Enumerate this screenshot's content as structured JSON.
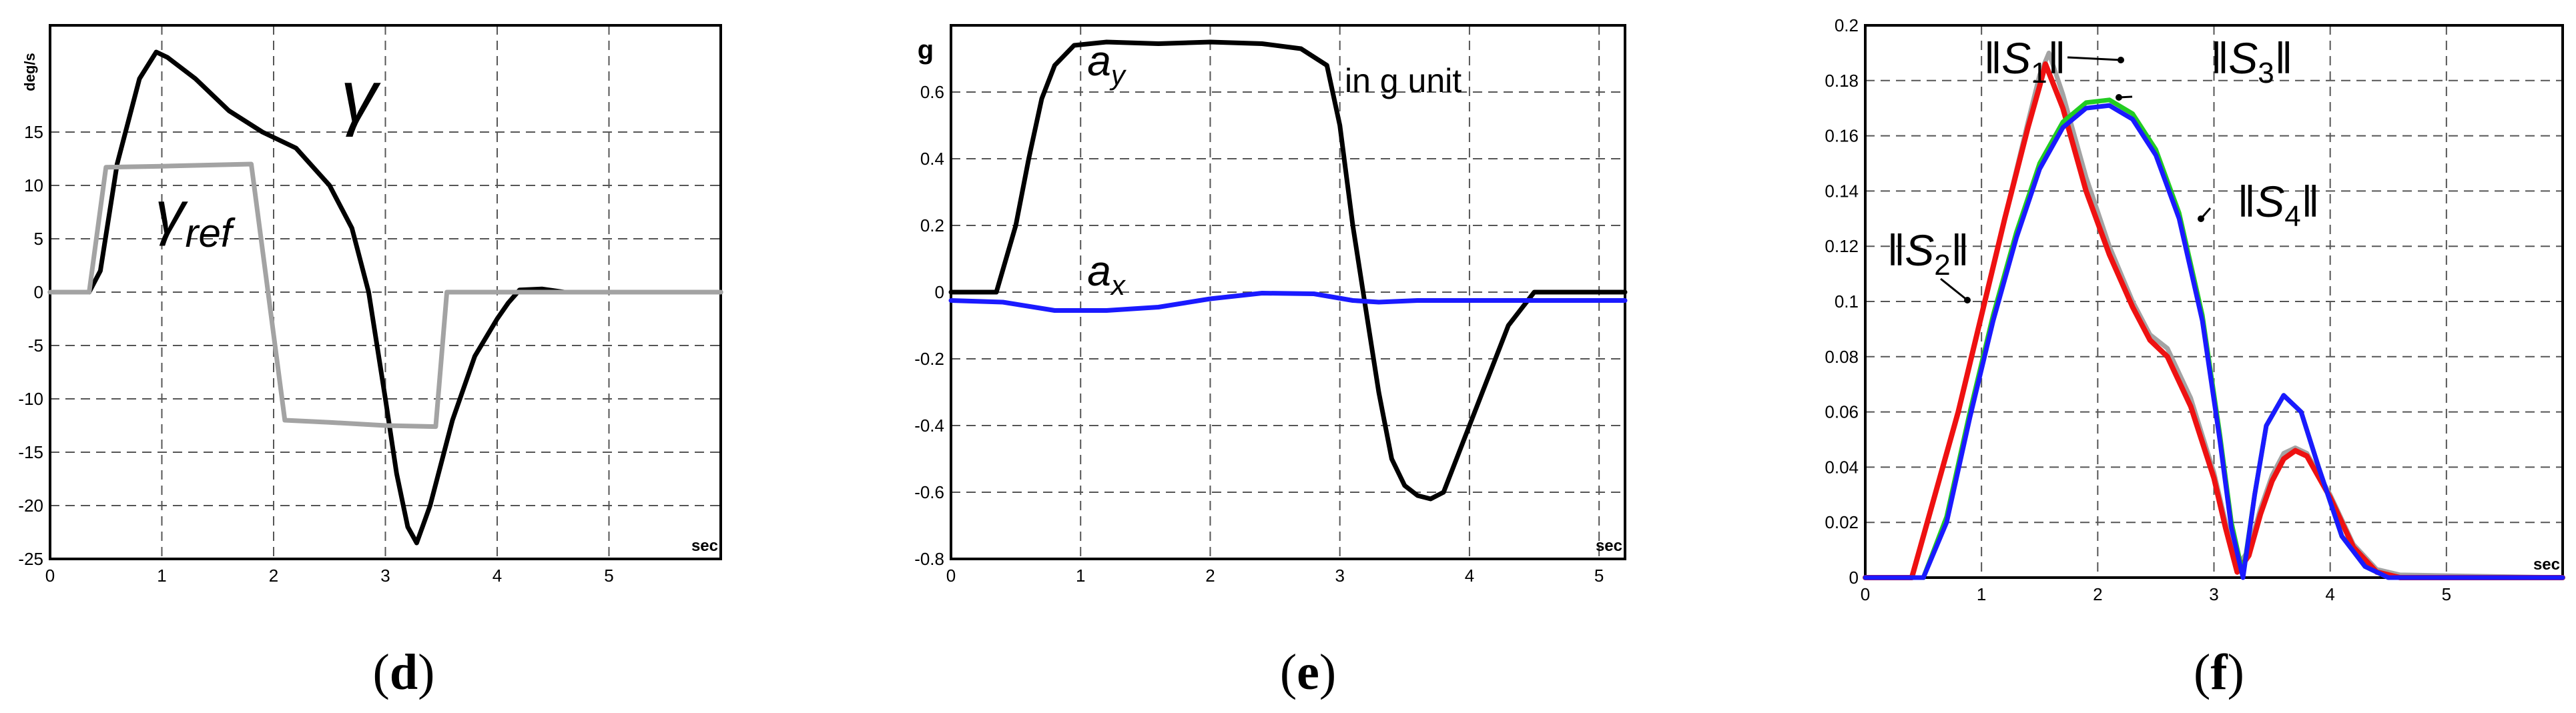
{
  "colors": {
    "black": "#000000",
    "gray": "#a3a3a3",
    "blue": "#1a1aff",
    "red": "#ee1111",
    "green": "#22cc22",
    "grid": "#555555"
  },
  "panels": [
    {
      "label_open": "(",
      "label_letter": "d",
      "label_close": ")"
    },
    {
      "label_open": "(",
      "label_letter": "e",
      "label_close": ")"
    },
    {
      "label_open": "(",
      "label_letter": "f",
      "label_close": ")"
    }
  ],
  "chart_data": [
    {
      "type": "line",
      "ylabel": "deg/s",
      "xunit": "sec",
      "xlim": [
        0,
        6
      ],
      "ylim": [
        -25,
        25
      ],
      "xticks": [
        0,
        1,
        2,
        3,
        4,
        5
      ],
      "yticks": [
        -25,
        -20,
        -15,
        -10,
        -5,
        0,
        5,
        10,
        15
      ],
      "grid": true,
      "annotations": [
        {
          "text": "γ",
          "x": 2.6,
          "y": 16
        },
        {
          "text": "γ",
          "sub": "ref",
          "x": 1.0,
          "y": 5.5
        }
      ],
      "series": [
        {
          "name": "γ",
          "color": "black",
          "x": [
            0,
            0.35,
            0.45,
            0.6,
            0.8,
            0.95,
            1.05,
            1.3,
            1.6,
            1.9,
            2.2,
            2.5,
            2.7,
            2.85,
            3.0,
            3.1,
            3.2,
            3.28,
            3.4,
            3.6,
            3.8,
            4.0,
            4.1,
            4.2,
            4.4,
            4.6,
            6.0
          ],
          "y": [
            0,
            0,
            2,
            12,
            20,
            22.5,
            22,
            20,
            17,
            15,
            13.5,
            10,
            6,
            0,
            -10,
            -17,
            -22,
            -23.5,
            -20,
            -12,
            -6,
            -2.5,
            -1,
            0.2,
            0.3,
            0,
            0
          ]
        },
        {
          "name": "γref",
          "color": "gray",
          "x": [
            0,
            0.35,
            0.5,
            1.0,
            1.8,
            2.1,
            2.5,
            3.0,
            3.45,
            3.55,
            6.0
          ],
          "y": [
            0,
            0,
            11.7,
            11.8,
            12,
            -12,
            -12.2,
            -12.5,
            -12.6,
            0,
            0
          ]
        }
      ]
    },
    {
      "type": "line",
      "ylabel": "g",
      "xunit": "sec",
      "annotation_text": "in g unit",
      "xlim": [
        0,
        5.2
      ],
      "ylim": [
        -0.8,
        0.8
      ],
      "xticks": [
        0,
        1,
        2,
        3,
        4,
        5
      ],
      "yticks": [
        -0.8,
        -0.6,
        -0.4,
        -0.2,
        0,
        0.2,
        0.4,
        0.6
      ],
      "grid": true,
      "annotations": [
        {
          "text": "a",
          "sub": "y",
          "x": 1.0,
          "y": 0.65
        },
        {
          "text": "a",
          "sub": "x",
          "x": 1.0,
          "y": 0.02
        }
      ],
      "series": [
        {
          "name": "ay",
          "color": "black",
          "x": [
            0,
            0.35,
            0.5,
            0.6,
            0.7,
            0.8,
            0.95,
            1.2,
            1.6,
            2.0,
            2.4,
            2.7,
            2.9,
            3.0,
            3.1,
            3.2,
            3.3,
            3.4,
            3.5,
            3.6,
            3.7,
            3.8,
            3.9,
            4.1,
            4.3,
            4.5,
            4.7,
            5.2
          ],
          "y": [
            0,
            0,
            0.2,
            0.4,
            0.58,
            0.68,
            0.74,
            0.75,
            0.745,
            0.75,
            0.745,
            0.73,
            0.68,
            0.5,
            0.2,
            -0.05,
            -0.3,
            -0.5,
            -0.58,
            -0.61,
            -0.62,
            -0.6,
            -0.5,
            -0.3,
            -0.1,
            0,
            0,
            0
          ]
        },
        {
          "name": "ax",
          "color": "blue",
          "x": [
            0,
            0.4,
            0.8,
            1.2,
            1.6,
            2.0,
            2.4,
            2.8,
            3.1,
            3.3,
            3.6,
            5.2
          ],
          "y": [
            -0.025,
            -0.03,
            -0.055,
            -0.055,
            -0.045,
            -0.02,
            -0.003,
            -0.005,
            -0.025,
            -0.03,
            -0.025,
            -0.025
          ]
        }
      ]
    },
    {
      "type": "line",
      "xunit": "sec",
      "xlim": [
        0,
        6
      ],
      "ylim": [
        0,
        0.2
      ],
      "xticks": [
        0,
        1,
        2,
        3,
        4,
        5
      ],
      "yticks": [
        0,
        0.02,
        0.04,
        0.06,
        0.08,
        0.1,
        0.12,
        0.14,
        0.16,
        0.18,
        0.2
      ],
      "grid": true,
      "annotations": [
        {
          "text": "S",
          "sub": "1",
          "x": 1.0,
          "y": 0.19
        },
        {
          "text": "S",
          "sub": "2",
          "x": 0.35,
          "y": 0.115
        },
        {
          "text": "S",
          "sub": "3",
          "x": 2.3,
          "y": 0.19
        },
        {
          "text": "S",
          "sub": "4",
          "x": 3.4,
          "y": 0.137
        }
      ],
      "series": [
        {
          "name": "S1",
          "color": "gray",
          "x": [
            0,
            0.4,
            0.6,
            0.8,
            1.0,
            1.2,
            1.4,
            1.5,
            1.58,
            1.7,
            1.9,
            2.1,
            2.3,
            2.45,
            2.6,
            2.8,
            3.0,
            3.1,
            3.2,
            3.3,
            3.4,
            3.5,
            3.6,
            3.7,
            3.8,
            4.0,
            4.2,
            4.4,
            4.6,
            6.0
          ],
          "y": [
            0,
            0,
            0.03,
            0.06,
            0.095,
            0.13,
            0.165,
            0.182,
            0.19,
            0.175,
            0.145,
            0.12,
            0.1,
            0.088,
            0.083,
            0.065,
            0.038,
            0.02,
            0.004,
            0.01,
            0.025,
            0.037,
            0.045,
            0.047,
            0.045,
            0.03,
            0.012,
            0.003,
            0.001,
            0
          ]
        },
        {
          "name": "S2",
          "color": "red",
          "x": [
            0,
            0.4,
            0.6,
            0.8,
            1.0,
            1.2,
            1.4,
            1.5,
            1.55,
            1.7,
            1.9,
            2.1,
            2.3,
            2.45,
            2.6,
            2.8,
            3.0,
            3.1,
            3.2,
            3.3,
            3.4,
            3.5,
            3.6,
            3.7,
            3.8,
            4.0,
            4.2,
            4.4,
            4.6,
            6.0
          ],
          "y": [
            0,
            0,
            0.03,
            0.06,
            0.095,
            0.13,
            0.163,
            0.178,
            0.186,
            0.17,
            0.14,
            0.117,
            0.098,
            0.086,
            0.08,
            0.062,
            0.036,
            0.018,
            0.002,
            0.008,
            0.023,
            0.035,
            0.043,
            0.046,
            0.044,
            0.029,
            0.011,
            0.002,
            0,
            0
          ]
        },
        {
          "name": "S3",
          "color": "green",
          "x": [
            0,
            0.5,
            0.7,
            0.9,
            1.1,
            1.3,
            1.5,
            1.7,
            1.9,
            2.1,
            2.3,
            2.5,
            2.7,
            2.9,
            3.05,
            3.15,
            3.25,
            3.35,
            3.45,
            3.6,
            3.75,
            3.9,
            4.1,
            4.3,
            4.5,
            6.0
          ],
          "y": [
            0,
            0,
            0.022,
            0.06,
            0.095,
            0.125,
            0.15,
            0.165,
            0.172,
            0.173,
            0.168,
            0.155,
            0.132,
            0.095,
            0.052,
            0.02,
            0.001,
            0.03,
            0.055,
            0.066,
            0.06,
            0.04,
            0.015,
            0.004,
            0,
            0
          ]
        },
        {
          "name": "S4",
          "color": "blue",
          "x": [
            0,
            0.5,
            0.7,
            0.9,
            1.1,
            1.3,
            1.5,
            1.7,
            1.9,
            2.1,
            2.3,
            2.5,
            2.7,
            2.9,
            3.05,
            3.15,
            3.25,
            3.35,
            3.45,
            3.6,
            3.75,
            3.9,
            4.1,
            4.3,
            4.5,
            6.0
          ],
          "y": [
            0,
            0,
            0.02,
            0.058,
            0.093,
            0.123,
            0.148,
            0.163,
            0.17,
            0.171,
            0.166,
            0.153,
            0.13,
            0.093,
            0.05,
            0.018,
            0,
            0.03,
            0.055,
            0.066,
            0.06,
            0.04,
            0.015,
            0.004,
            0,
            0
          ]
        }
      ]
    }
  ]
}
